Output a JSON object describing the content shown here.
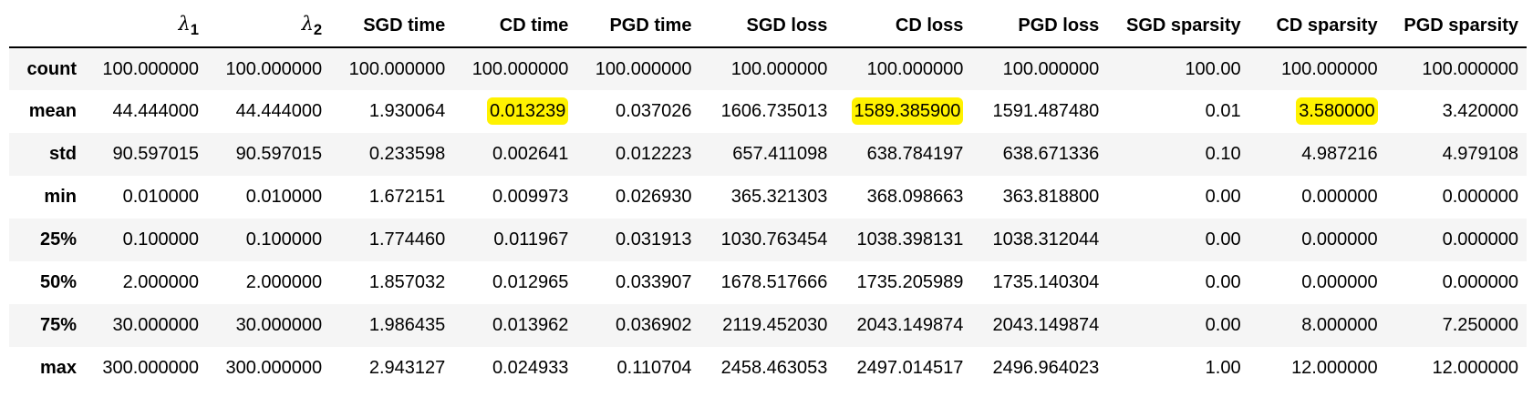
{
  "table": {
    "corner": "",
    "columns": [
      {
        "label": "λ",
        "sub": "1",
        "math": true
      },
      {
        "label": "λ",
        "sub": "2",
        "math": true
      },
      {
        "label": "SGD time"
      },
      {
        "label": "CD time"
      },
      {
        "label": "PGD time"
      },
      {
        "label": "SGD loss"
      },
      {
        "label": "CD loss"
      },
      {
        "label": "PGD loss"
      },
      {
        "label": "SGD sparsity"
      },
      {
        "label": "CD sparsity"
      },
      {
        "label": "PGD sparsity"
      }
    ],
    "rows": [
      {
        "label": "count",
        "cells": [
          "100.000000",
          "100.000000",
          "100.000000",
          "100.000000",
          "100.000000",
          "100.000000",
          "100.000000",
          "100.000000",
          "100.00",
          "100.000000",
          "100.000000"
        ]
      },
      {
        "label": "mean",
        "cells": [
          "44.444000",
          "44.444000",
          "1.930064",
          "0.013239",
          "0.037026",
          "1606.735013",
          "1589.385900",
          "1591.487480",
          "0.01",
          "3.580000",
          "3.420000"
        ]
      },
      {
        "label": "std",
        "cells": [
          "90.597015",
          "90.597015",
          "0.233598",
          "0.002641",
          "0.012223",
          "657.411098",
          "638.784197",
          "638.671336",
          "0.10",
          "4.987216",
          "4.979108"
        ]
      },
      {
        "label": "min",
        "cells": [
          "0.010000",
          "0.010000",
          "1.672151",
          "0.009973",
          "0.026930",
          "365.321303",
          "368.098663",
          "363.818800",
          "0.00",
          "0.000000",
          "0.000000"
        ]
      },
      {
        "label": "25%",
        "cells": [
          "0.100000",
          "0.100000",
          "1.774460",
          "0.011967",
          "0.031913",
          "1030.763454",
          "1038.398131",
          "1038.312044",
          "0.00",
          "0.000000",
          "0.000000"
        ]
      },
      {
        "label": "50%",
        "cells": [
          "2.000000",
          "2.000000",
          "1.857032",
          "0.012965",
          "0.033907",
          "1678.517666",
          "1735.205989",
          "1735.140304",
          "0.00",
          "0.000000",
          "0.000000"
        ]
      },
      {
        "label": "75%",
        "cells": [
          "30.000000",
          "30.000000",
          "1.986435",
          "0.013962",
          "0.036902",
          "2119.452030",
          "2043.149874",
          "2043.149874",
          "0.00",
          "8.000000",
          "7.250000"
        ]
      },
      {
        "label": "max",
        "cells": [
          "300.000000",
          "300.000000",
          "2.943127",
          "0.024933",
          "0.110704",
          "2458.463053",
          "2497.014517",
          "2496.964023",
          "1.00",
          "12.000000",
          "12.000000"
        ]
      }
    ],
    "highlighted": [
      {
        "row": 1,
        "col": 3
      },
      {
        "row": 1,
        "col": 6
      },
      {
        "row": 1,
        "col": 9
      }
    ]
  },
  "colors": {
    "highlight": "#fff200",
    "stripe": "#f5f5f5",
    "header_rule": "#000000",
    "text": "#000000"
  }
}
